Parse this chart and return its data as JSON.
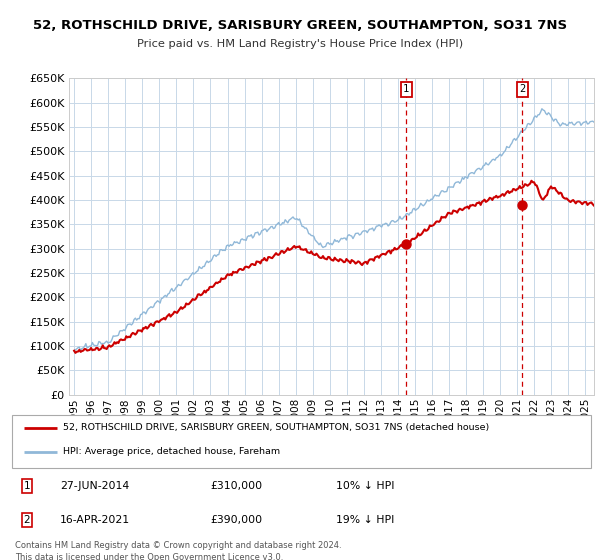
{
  "title": "52, ROTHSCHILD DRIVE, SARISBURY GREEN, SOUTHAMPTON, SO31 7NS",
  "subtitle": "Price paid vs. HM Land Registry's House Price Index (HPI)",
  "ylim": [
    0,
    650000
  ],
  "yticks": [
    0,
    50000,
    100000,
    150000,
    200000,
    250000,
    300000,
    350000,
    400000,
    450000,
    500000,
    550000,
    600000,
    650000
  ],
  "xlim_start": 1994.7,
  "xlim_end": 2025.5,
  "xticks": [
    1995,
    1996,
    1997,
    1998,
    1999,
    2000,
    2001,
    2002,
    2003,
    2004,
    2005,
    2006,
    2007,
    2008,
    2009,
    2010,
    2011,
    2012,
    2013,
    2014,
    2015,
    2016,
    2017,
    2018,
    2019,
    2020,
    2021,
    2022,
    2023,
    2024,
    2025
  ],
  "transaction1_date": 2014.49,
  "transaction1_price": 310000,
  "transaction1_label": "27-JUN-2014",
  "transaction1_pct": "10% ↓ HPI",
  "transaction2_date": 2021.29,
  "transaction2_price": 390000,
  "transaction2_label": "16-APR-2021",
  "transaction2_pct": "19% ↓ HPI",
  "line1_color": "#cc0000",
  "line2_color": "#90b8d8",
  "grid_color": "#c8d8e8",
  "background_color": "#ffffff",
  "legend1_label": "52, ROTHSCHILD DRIVE, SARISBURY GREEN, SOUTHAMPTON, SO31 7NS (detached house)",
  "legend2_label": "HPI: Average price, detached house, Fareham",
  "footnote1": "Contains HM Land Registry data © Crown copyright and database right 2024.",
  "footnote2": "This data is licensed under the Open Government Licence v3.0."
}
